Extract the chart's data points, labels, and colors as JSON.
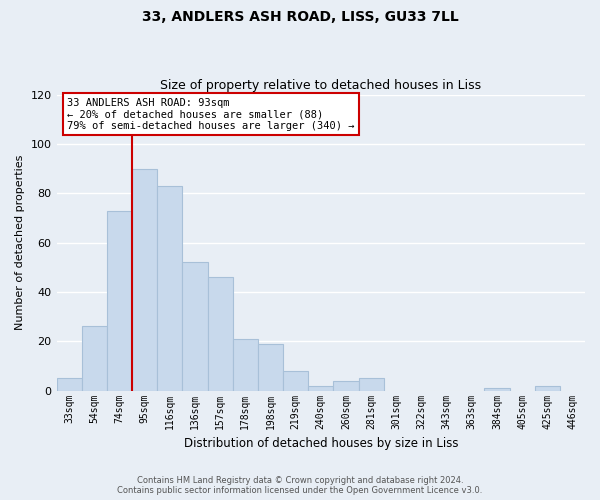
{
  "title": "33, ANDLERS ASH ROAD, LISS, GU33 7LL",
  "subtitle": "Size of property relative to detached houses in Liss",
  "xlabel": "Distribution of detached houses by size in Liss",
  "ylabel": "Number of detached properties",
  "bar_labels": [
    "33sqm",
    "54sqm",
    "74sqm",
    "95sqm",
    "116sqm",
    "136sqm",
    "157sqm",
    "178sqm",
    "198sqm",
    "219sqm",
    "240sqm",
    "260sqm",
    "281sqm",
    "301sqm",
    "322sqm",
    "343sqm",
    "363sqm",
    "384sqm",
    "405sqm",
    "425sqm",
    "446sqm"
  ],
  "bar_values": [
    5,
    26,
    73,
    90,
    83,
    52,
    46,
    21,
    19,
    8,
    2,
    4,
    5,
    0,
    0,
    0,
    0,
    1,
    0,
    2,
    0
  ],
  "bar_color": "#c8d9ec",
  "bar_edge_color": "#a8c0d8",
  "vline_color": "#cc0000",
  "vline_pos": 2.5,
  "ylim": [
    0,
    120
  ],
  "yticks": [
    0,
    20,
    40,
    60,
    80,
    100,
    120
  ],
  "annotation_text": "33 ANDLERS ASH ROAD: 93sqm\n← 20% of detached houses are smaller (88)\n79% of semi-detached houses are larger (340) →",
  "annotation_box_color": "#ffffff",
  "annotation_box_edge": "#cc0000",
  "footer_line1": "Contains HM Land Registry data © Crown copyright and database right 2024.",
  "footer_line2": "Contains public sector information licensed under the Open Government Licence v3.0.",
  "background_color": "#e8eef5",
  "plot_bg_color": "#e8eef5",
  "grid_color": "#ffffff"
}
